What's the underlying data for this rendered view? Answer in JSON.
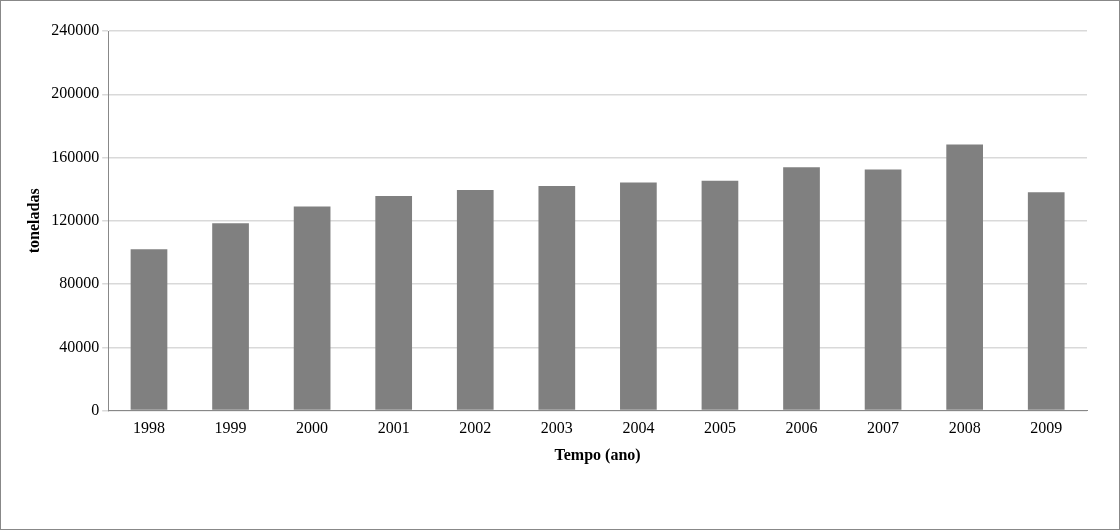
{
  "chart_data": {
    "type": "bar",
    "xlabel": "Tempo (ano)",
    "ylabel": "toneladas",
    "categories": [
      "1998",
      "1999",
      "2000",
      "2001",
      "2002",
      "2003",
      "2004",
      "2005",
      "2006",
      "2007",
      "2008",
      "2009"
    ],
    "values": [
      102000,
      118400,
      129000,
      135700,
      139500,
      142000,
      144200,
      145400,
      153800,
      152400,
      168200,
      138100
    ],
    "color": "#808080",
    "ylim": [
      0,
      240000
    ],
    "yticks": [
      0,
      40000,
      80000,
      120000,
      160000,
      200000,
      240000
    ],
    "grid": "y",
    "legend": false
  }
}
